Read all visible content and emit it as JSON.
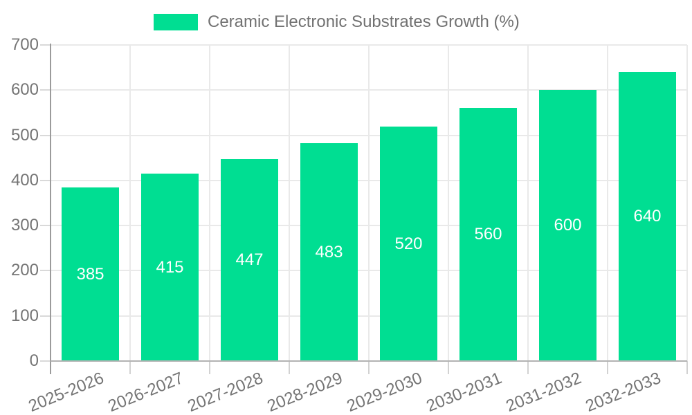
{
  "chart_data": {
    "type": "bar",
    "title": "Ceramic Electronic Substrates Growth (%)",
    "legend": {
      "position": "top-center",
      "entries": [
        "Ceramic Electronic Substrates Growth (%)"
      ]
    },
    "categories": [
      "2025-2026",
      "2026-2027",
      "2027-2028",
      "2028-2029",
      "2029-2030",
      "2030-2031",
      "2031-2032",
      "2032-2033"
    ],
    "values": [
      385,
      415,
      447,
      483,
      520,
      560,
      600,
      640
    ],
    "data_labels_shown": true,
    "xlabel": "",
    "ylabel": "",
    "ylim": [
      0,
      700
    ],
    "y_ticks": [
      0,
      100,
      200,
      300,
      400,
      500,
      600,
      700
    ],
    "grid": true,
    "colors": {
      "bar": "#00DE92",
      "value_label": "#FFFFFF",
      "axis_text": "#757575",
      "gridline": "#E9E9E9",
      "background": "#FFFFFF"
    }
  }
}
